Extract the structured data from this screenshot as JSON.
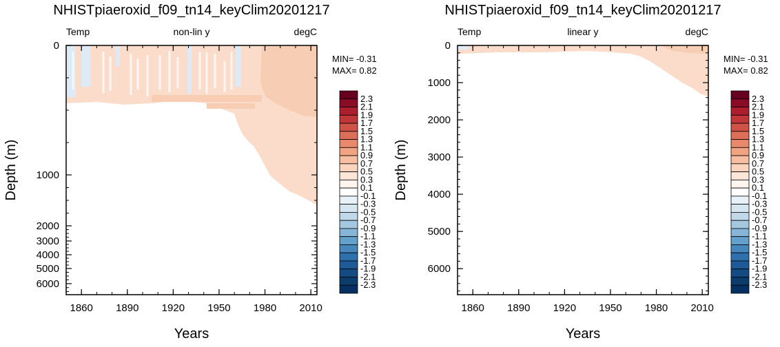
{
  "chart_data": [
    {
      "type": "heatmap",
      "title": "NHISTpiaeroxid_f09_tn14_keyClim20201217",
      "left_label": "Temp",
      "center_label": "non-lin y",
      "right_label": "degC",
      "xlabel": "Years",
      "ylabel": "Depth (m)",
      "y_scale": "non-linear",
      "x_ticks": [
        "1860",
        "1890",
        "1920",
        "1950",
        "1980",
        "2010"
      ],
      "xlim": [
        1850,
        2014
      ],
      "y_ticks": [
        "0",
        "1000",
        "2000",
        "3000",
        "4000",
        "5000",
        "6000"
      ],
      "ylim": [
        0,
        6700
      ],
      "min_label": "MIN= -0.31",
      "max_label": "MAX=  0.82"
    },
    {
      "type": "heatmap",
      "title": "NHISTpiaeroxid_f09_tn14_keyClim20201217",
      "left_label": "Temp",
      "center_label": "linear y",
      "right_label": "degC",
      "xlabel": "Years",
      "ylabel": "Depth (m)",
      "y_scale": "linear",
      "x_ticks": [
        "1860",
        "1890",
        "1920",
        "1950",
        "1980",
        "2010"
      ],
      "xlim": [
        1850,
        2014
      ],
      "y_ticks": [
        "0",
        "1000",
        "2000",
        "3000",
        "4000",
        "5000",
        "6000"
      ],
      "ylim": [
        0,
        6700
      ],
      "min_label": "MIN= -0.31",
      "max_label": "MAX=  0.82"
    }
  ],
  "colorbar": {
    "labels": [
      "2.3",
      "2.1",
      "1.9",
      "1.7",
      "1.5",
      "1.3",
      "1.1",
      "0.9",
      "0.7",
      "0.5",
      "0.3",
      "0.1",
      "-0.1",
      "-0.3",
      "-0.5",
      "-0.7",
      "-0.9",
      "-1.1",
      "-1.3",
      "-1.5",
      "-1.7",
      "-1.9",
      "-2.1",
      "-2.3"
    ],
    "colors": [
      "#67001f",
      "#8a0b25",
      "#ac1e2d",
      "#c13639",
      "#cf5246",
      "#dd6f59",
      "#e8896c",
      "#f2a382",
      "#f7bea1",
      "#fbd4bd",
      "#fde5d8",
      "#fff4ee",
      "#ffffff",
      "#e8f1f7",
      "#d6e6f1",
      "#c0d8ea",
      "#a5c8e1",
      "#86b5d7",
      "#63a0cb",
      "#4688bc",
      "#2e70ae",
      "#1f5a98",
      "#144b83",
      "#0b3c6b",
      "#053061"
    ]
  },
  "palette": {
    "warm": "#fbdccb",
    "warm_strong": "#f7cdb4",
    "cool": "#deeaf5"
  }
}
